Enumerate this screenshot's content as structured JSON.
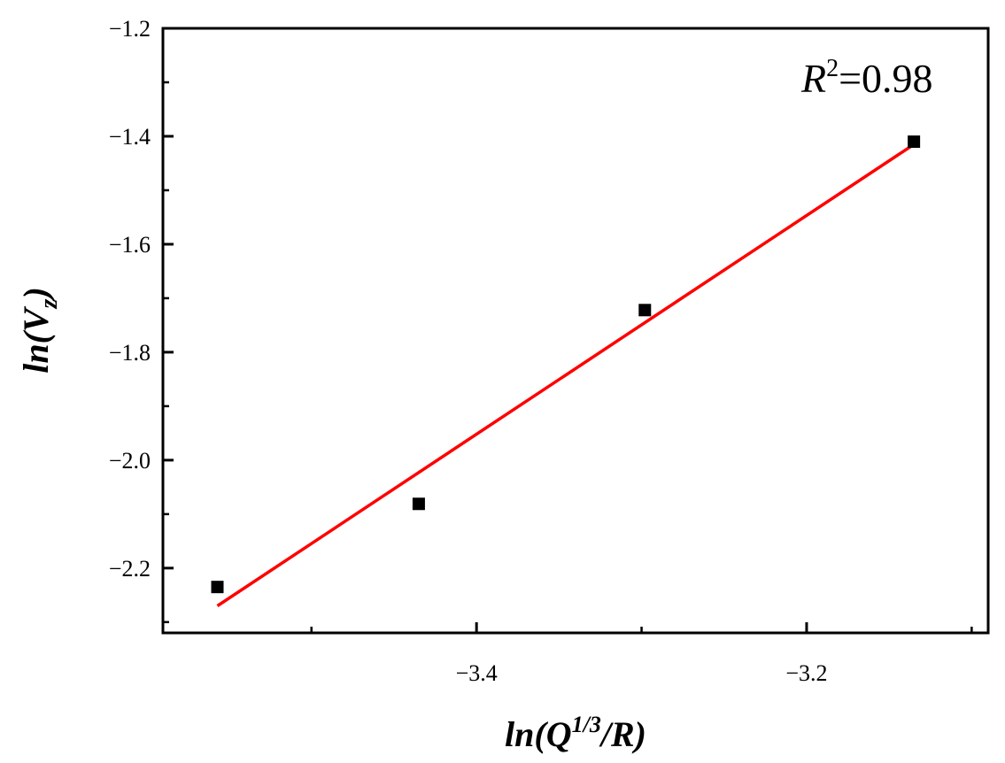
{
  "chart_data": {
    "type": "scatter",
    "title": "",
    "xlabel": "ln(Q1/3/R)",
    "ylabel": "ln(Vz)",
    "xlim": [
      -3.59,
      -3.09
    ],
    "ylim": [
      -2.32,
      -1.2
    ],
    "x_ticks": [
      -3.4,
      -3.2
    ],
    "x_tick_labels": [
      "−3.4",
      "−3.2"
    ],
    "y_ticks": [
      -1.2,
      -1.4,
      -1.6,
      -1.8,
      -2.0,
      -2.2
    ],
    "y_tick_labels": [
      "−1.2",
      "−1.4",
      "−1.6",
      "−1.8",
      "−2.0",
      "−2.2"
    ],
    "grid": false,
    "series": [
      {
        "points": [
          {
            "x": -3.557,
            "y": -2.235
          },
          {
            "x": -3.435,
            "y": -2.081
          },
          {
            "x": -3.298,
            "y": -1.722
          },
          {
            "x": -3.135,
            "y": -1.41
          }
        ],
        "marker": "square",
        "color": "#000000"
      }
    ],
    "fit_line": {
      "x": [
        -3.557,
        -3.135
      ],
      "y": [
        -2.27,
        -1.415
      ],
      "color": "#ff0000"
    },
    "annotation": {
      "symbol": "R",
      "superscript": "2",
      "text": "=0.98"
    }
  }
}
